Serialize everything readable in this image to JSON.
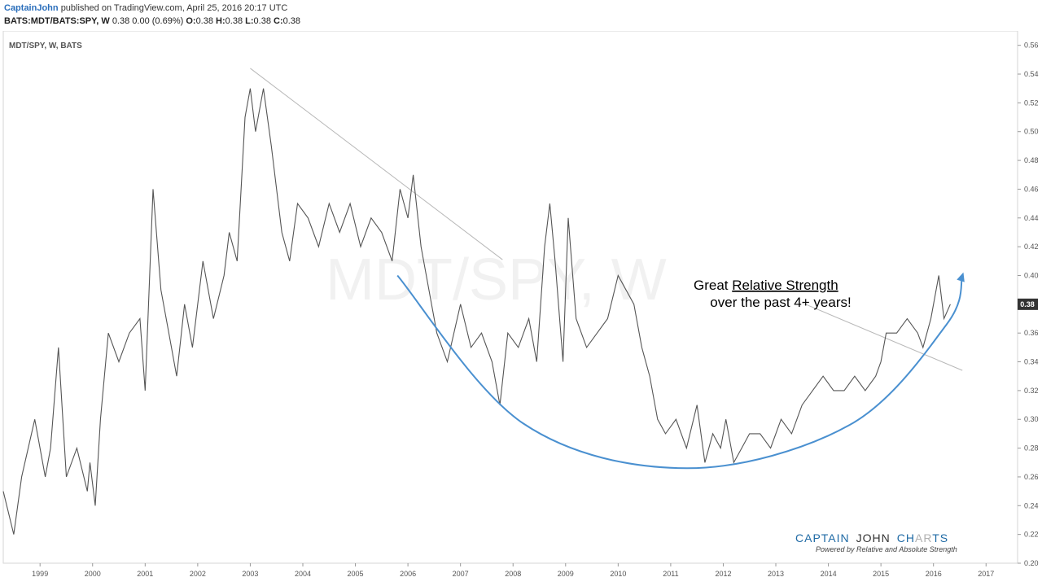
{
  "header": {
    "author": "CaptainJohn",
    "published": "published on TradingView.com, April 25, 2016 20:17 UTC",
    "symbol": "BATS:MDT/BATS:SPY, W",
    "change": "0.38 0.00 (0.69%)",
    "ohlc": [
      {
        "label": "O:",
        "value": "0.38"
      },
      {
        "label": "H:",
        "value": "0.38"
      },
      {
        "label": "L:",
        "value": "0.38"
      },
      {
        "label": "C:",
        "value": "0.38"
      }
    ]
  },
  "chart": {
    "symbol_label": "MDT/SPY, W, BATS",
    "watermark": "MDT/SPY, W",
    "last_price_label": "0.38",
    "colors": {
      "price": "#555555",
      "arc": "#4a90d0",
      "trend": "#b8b8b8",
      "badge": "#333333",
      "brand": "#2a6ebb"
    }
  },
  "annotation": {
    "line1_prefix": "Great ",
    "line1_underlined": "Relative Strength",
    "line2": "over the past 4+ years!"
  },
  "brand": {
    "captain": "CAPTAIN",
    "john": "JOHN",
    "charts_ch": "CH",
    "charts_ar": "AR",
    "charts_ts": "TS",
    "tagline": "Powered by Relative and  Absolute Strength"
  },
  "chart_data": {
    "type": "line",
    "title": "MDT/SPY, W, BATS",
    "xlabel": "",
    "ylabel": "",
    "xlim": [
      1998.3,
      2017.6
    ],
    "ylim": [
      0.2,
      0.57
    ],
    "x_ticks": [
      "1999",
      "2000",
      "2001",
      "2002",
      "2003",
      "2004",
      "2005",
      "2006",
      "2007",
      "2008",
      "2009",
      "2010",
      "2011",
      "2012",
      "2013",
      "2014",
      "2015",
      "2016",
      "2017"
    ],
    "y_ticks": [
      "0.20",
      "0.22",
      "0.24",
      "0.26",
      "0.28",
      "0.30",
      "0.32",
      "0.34",
      "0.36",
      "0.38",
      "0.40",
      "0.42",
      "0.44",
      "0.46",
      "0.48",
      "0.50",
      "0.52",
      "0.54",
      "0.56"
    ],
    "series": [
      {
        "x": [
          1998.3,
          1998.5,
          1998.65,
          1998.9,
          1999.1,
          1999.2,
          1999.35,
          1999.5,
          1999.7,
          1999.9,
          1999.95,
          2000.05,
          2000.15,
          2000.3,
          2000.5,
          2000.7,
          2000.9,
          2001.0,
          2001.15,
          2001.3,
          2001.45,
          2001.6,
          2001.75,
          2001.9,
          2002.1,
          2002.3,
          2002.5,
          2002.6,
          2002.75,
          2002.9,
          2003.0,
          2003.1,
          2003.25,
          2003.4,
          2003.6,
          2003.75,
          2003.9,
          2004.1,
          2004.3,
          2004.5,
          2004.7,
          2004.9,
          2005.1,
          2005.3,
          2005.5,
          2005.7,
          2005.85,
          2006.0,
          2006.1,
          2006.25,
          2006.4,
          2006.55,
          2006.75,
          2007.0,
          2007.2,
          2007.4,
          2007.6,
          2007.75,
          2007.9,
          2008.1,
          2008.3,
          2008.45,
          2008.6,
          2008.7,
          2008.8,
          2008.95,
          2009.05,
          2009.2,
          2009.4,
          2009.6,
          2009.8,
          2010.0,
          2010.15,
          2010.3,
          2010.45,
          2010.6,
          2010.75,
          2010.9,
          2011.1,
          2011.3,
          2011.5,
          2011.65,
          2011.8,
          2011.95,
          2012.05,
          2012.2,
          2012.35,
          2012.5,
          2012.7,
          2012.9,
          2013.1,
          2013.3,
          2013.5,
          2013.7,
          2013.9,
          2014.1,
          2014.3,
          2014.5,
          2014.7,
          2014.9,
          2015.0,
          2015.1,
          2015.3,
          2015.5,
          2015.7,
          2015.8,
          2015.95,
          2016.1,
          2016.2,
          2016.32
        ],
        "y": [
          0.25,
          0.22,
          0.26,
          0.3,
          0.26,
          0.28,
          0.35,
          0.26,
          0.28,
          0.25,
          0.27,
          0.24,
          0.3,
          0.36,
          0.34,
          0.36,
          0.37,
          0.32,
          0.46,
          0.39,
          0.36,
          0.33,
          0.38,
          0.35,
          0.41,
          0.37,
          0.4,
          0.43,
          0.41,
          0.51,
          0.53,
          0.5,
          0.53,
          0.49,
          0.43,
          0.41,
          0.45,
          0.44,
          0.42,
          0.45,
          0.43,
          0.45,
          0.42,
          0.44,
          0.43,
          0.41,
          0.46,
          0.44,
          0.47,
          0.42,
          0.39,
          0.36,
          0.34,
          0.38,
          0.35,
          0.36,
          0.34,
          0.31,
          0.36,
          0.35,
          0.37,
          0.34,
          0.42,
          0.45,
          0.41,
          0.34,
          0.44,
          0.37,
          0.35,
          0.36,
          0.37,
          0.4,
          0.39,
          0.38,
          0.35,
          0.33,
          0.3,
          0.29,
          0.3,
          0.28,
          0.31,
          0.27,
          0.29,
          0.28,
          0.3,
          0.27,
          0.28,
          0.29,
          0.29,
          0.28,
          0.3,
          0.29,
          0.31,
          0.32,
          0.33,
          0.32,
          0.32,
          0.33,
          0.32,
          0.33,
          0.34,
          0.36,
          0.36,
          0.37,
          0.36,
          0.35,
          0.37,
          0.4,
          0.37,
          0.38
        ]
      }
    ],
    "trendlines": [
      {
        "x": [
          2003.0,
          2007.8
        ],
        "y": [
          0.544,
          0.411
        ]
      },
      {
        "x": [
          2013.5,
          2016.55
        ],
        "y": [
          0.381,
          0.334
        ]
      }
    ],
    "arc": {
      "x": [
        2005.8,
        2008.2,
        2011.3,
        2014.4,
        2016.25,
        2016.55
      ],
      "y": [
        0.4,
        0.297,
        0.266,
        0.296,
        0.366,
        0.4
      ]
    },
    "last_value": 0.38,
    "grid": false,
    "legend": "none"
  }
}
